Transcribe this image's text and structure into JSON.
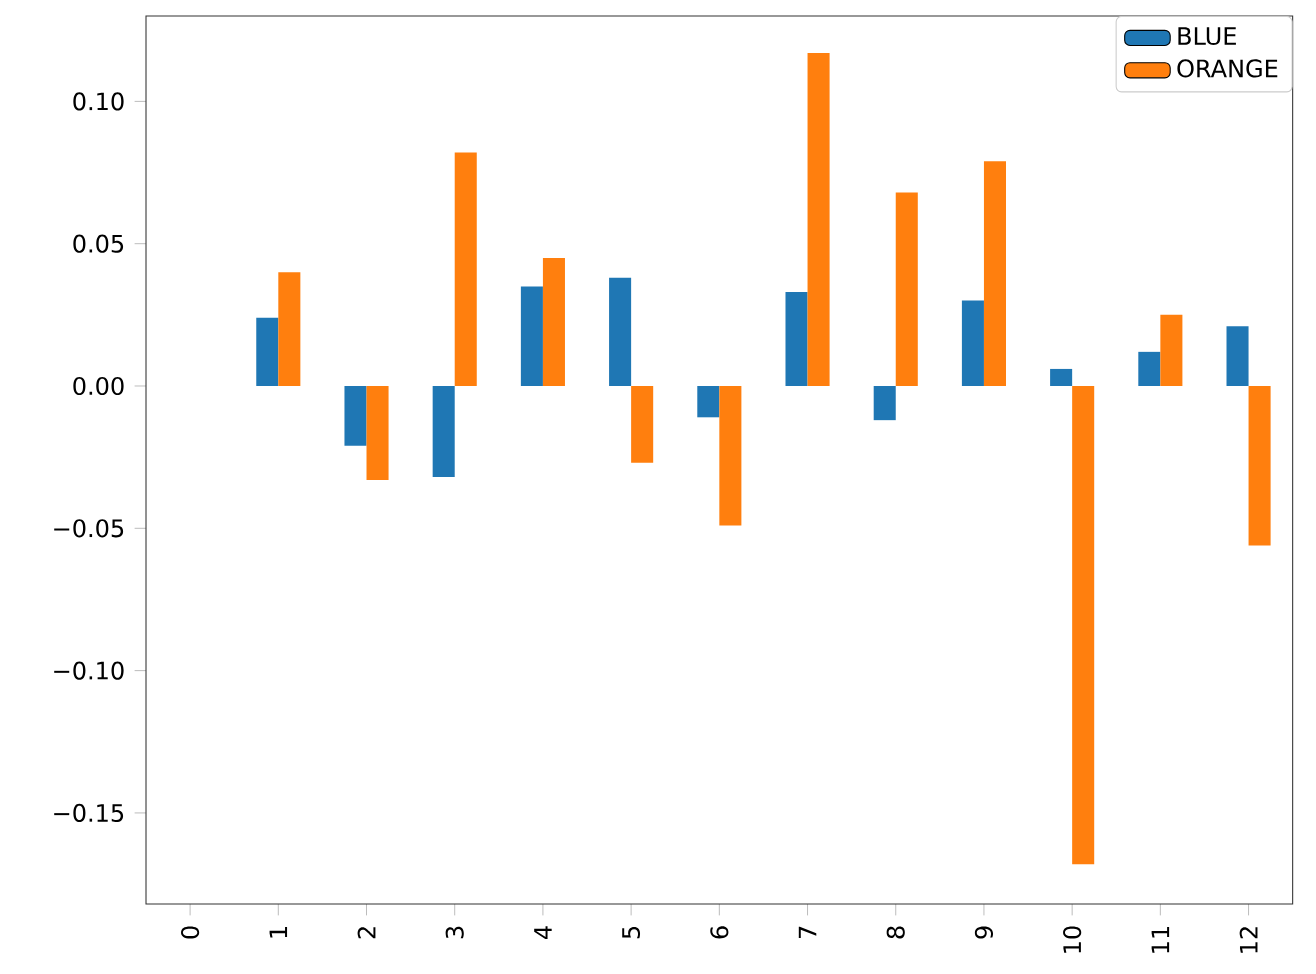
{
  "chart_data": {
    "type": "bar",
    "categories": [
      "0",
      "1",
      "2",
      "3",
      "4",
      "5",
      "6",
      "7",
      "8",
      "9",
      "10",
      "11",
      "12"
    ],
    "series": [
      {
        "name": "BLUE",
        "color": "#1f77b4",
        "values": [
          null,
          0.024,
          -0.021,
          -0.032,
          0.035,
          0.038,
          -0.011,
          0.033,
          -0.012,
          0.03,
          0.006,
          0.012,
          0.021
        ]
      },
      {
        "name": "ORANGE",
        "color": "#ff7f0e",
        "values": [
          null,
          0.04,
          -0.033,
          0.082,
          0.045,
          -0.027,
          -0.049,
          0.117,
          0.068,
          0.079,
          -0.168,
          0.025,
          -0.056
        ]
      }
    ],
    "ylim": [
      -0.182,
      0.13
    ],
    "yticks": [
      {
        "value": -0.15,
        "label": "−0.15"
      },
      {
        "value": -0.1,
        "label": "−0.10"
      },
      {
        "value": -0.05,
        "label": "−0.05"
      },
      {
        "value": 0.0,
        "label": "0.00"
      },
      {
        "value": 0.05,
        "label": "0.05"
      },
      {
        "value": 0.1,
        "label": "0.10"
      }
    ],
    "legend": "top right"
  }
}
